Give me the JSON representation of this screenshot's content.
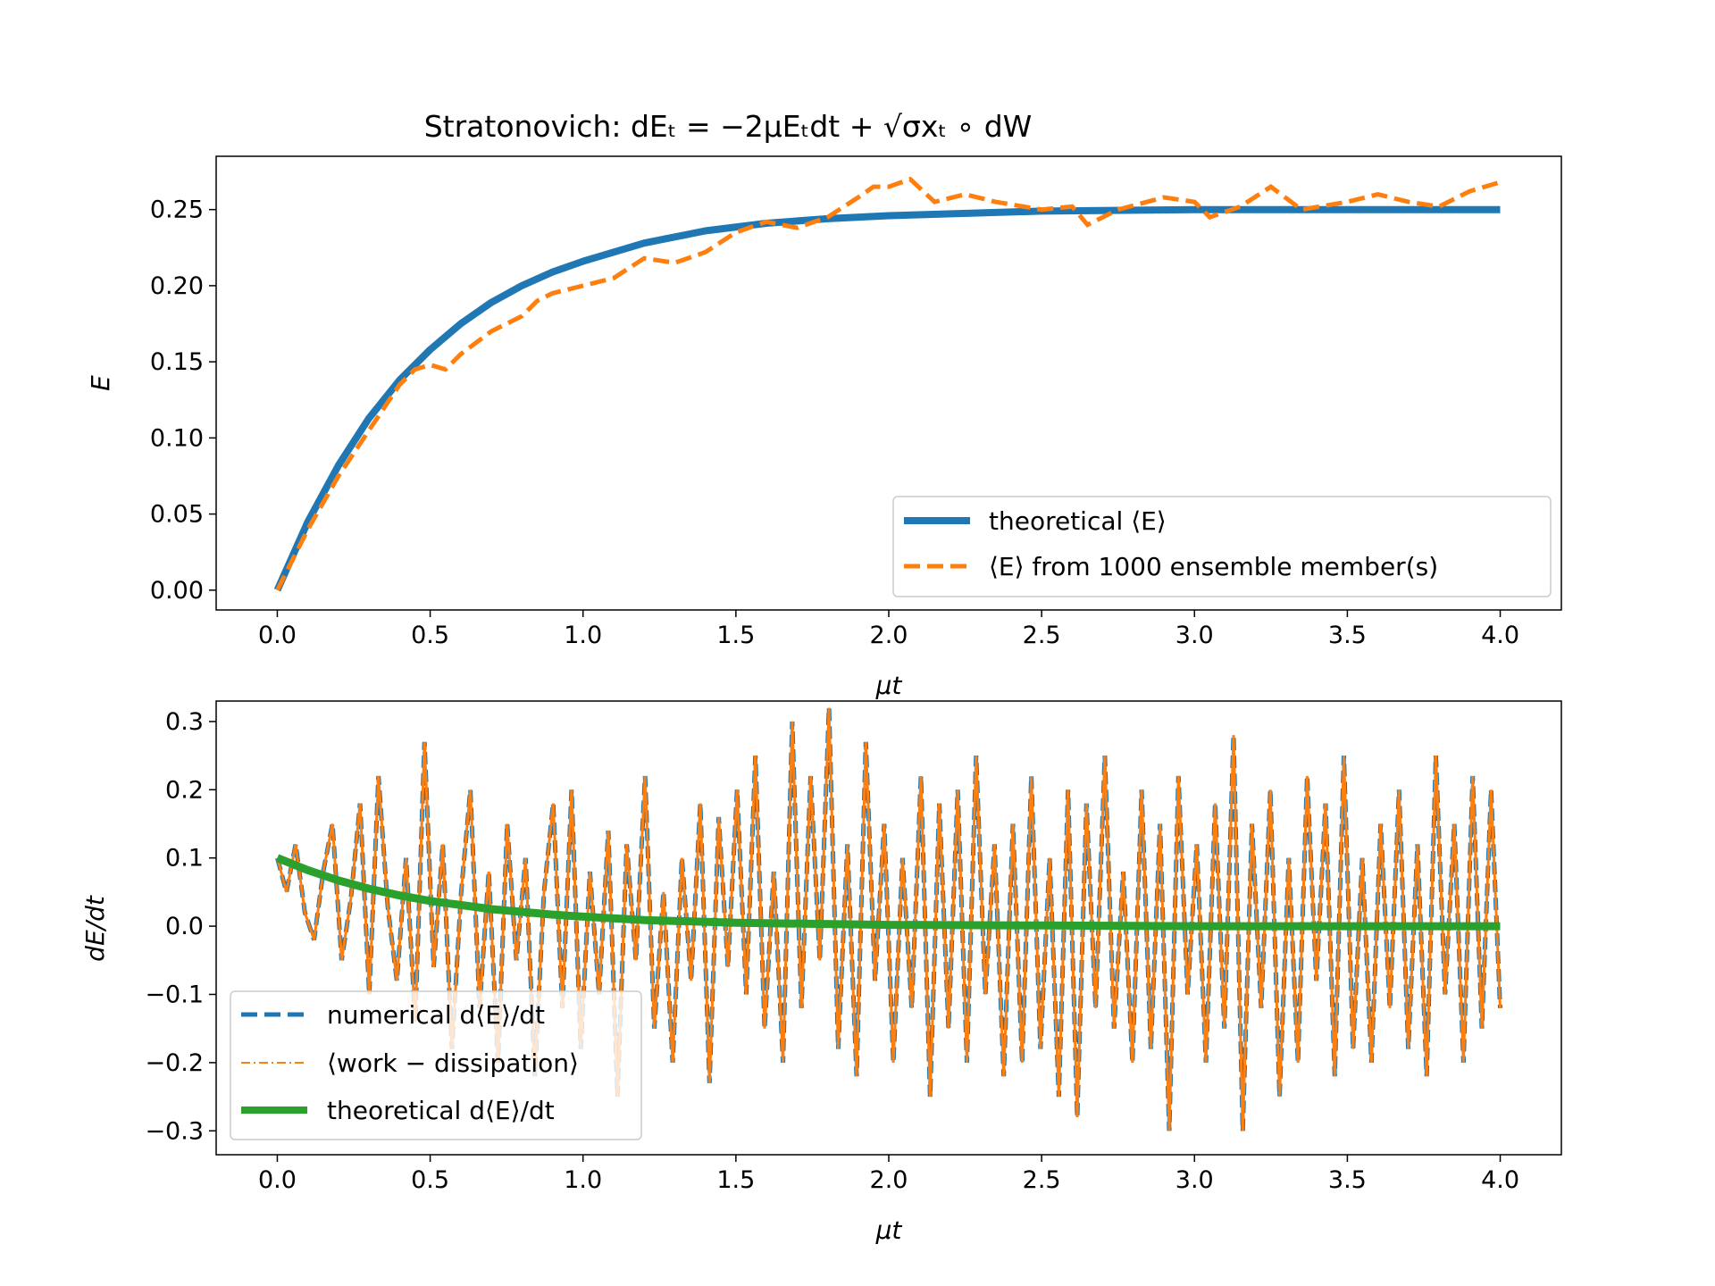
{
  "figure": {
    "title": "Stratonovich: dEₜ = −2μEₜdt + √σxₜ ∘ dW"
  },
  "chart_data": [
    {
      "type": "line",
      "title": "Stratonovich: dEₜ = −2μEₜdt + √σxₜ ∘ dW",
      "xlabel": "μt",
      "ylabel": "E",
      "xlim": [
        -0.2,
        4.2
      ],
      "ylim": [
        -0.013,
        0.285
      ],
      "xticks": [
        0.0,
        0.5,
        1.0,
        1.5,
        2.0,
        2.5,
        3.0,
        3.5,
        4.0
      ],
      "xtick_labels": [
        "0.0",
        "0.5",
        "1.0",
        "1.5",
        "2.0",
        "2.5",
        "3.0",
        "3.5",
        "4.0"
      ],
      "yticks": [
        0.0,
        0.05,
        0.1,
        0.15,
        0.2,
        0.25
      ],
      "ytick_labels": [
        "0.00",
        "0.05",
        "0.10",
        "0.15",
        "0.20",
        "0.25"
      ],
      "grid": false,
      "legend_position": "lower-right",
      "series": [
        {
          "name": "theoretical ⟨E⟩",
          "color": "#1f77b4",
          "style": "solid",
          "x": [
            0.0,
            0.1,
            0.2,
            0.3,
            0.4,
            0.5,
            0.6,
            0.7,
            0.8,
            0.9,
            1.0,
            1.2,
            1.4,
            1.6,
            1.8,
            2.0,
            2.5,
            3.0,
            3.5,
            4.0
          ],
          "y": [
            0.0,
            0.045,
            0.082,
            0.113,
            0.138,
            0.158,
            0.175,
            0.189,
            0.2,
            0.209,
            0.216,
            0.228,
            0.236,
            0.241,
            0.244,
            0.246,
            0.249,
            0.25,
            0.25,
            0.25
          ]
        },
        {
          "name": "⟨E⟩ from 1000 ensemble member(s)",
          "color": "#ff7f0e",
          "style": "dashed",
          "x": [
            0.0,
            0.1,
            0.2,
            0.3,
            0.4,
            0.45,
            0.5,
            0.55,
            0.6,
            0.7,
            0.8,
            0.85,
            0.9,
            1.0,
            1.1,
            1.2,
            1.3,
            1.4,
            1.5,
            1.6,
            1.7,
            1.8,
            1.9,
            1.95,
            2.0,
            2.07,
            2.15,
            2.25,
            2.35,
            2.5,
            2.6,
            2.65,
            2.75,
            2.9,
            3.0,
            3.05,
            3.15,
            3.25,
            3.35,
            3.5,
            3.6,
            3.7,
            3.8,
            3.9,
            4.0
          ],
          "y": [
            0.0,
            0.04,
            0.075,
            0.105,
            0.135,
            0.145,
            0.148,
            0.145,
            0.155,
            0.17,
            0.18,
            0.19,
            0.195,
            0.2,
            0.205,
            0.218,
            0.215,
            0.222,
            0.235,
            0.242,
            0.238,
            0.245,
            0.258,
            0.265,
            0.265,
            0.27,
            0.255,
            0.26,
            0.255,
            0.25,
            0.252,
            0.24,
            0.25,
            0.258,
            0.255,
            0.245,
            0.252,
            0.265,
            0.25,
            0.255,
            0.26,
            0.255,
            0.252,
            0.262,
            0.268
          ]
        }
      ]
    },
    {
      "type": "line",
      "xlabel": "μt",
      "ylabel": "dE/dt",
      "xlim": [
        -0.2,
        4.2
      ],
      "ylim": [
        -0.335,
        0.33
      ],
      "xticks": [
        0.0,
        0.5,
        1.0,
        1.5,
        2.0,
        2.5,
        3.0,
        3.5,
        4.0
      ],
      "xtick_labels": [
        "0.0",
        "0.5",
        "1.0",
        "1.5",
        "2.0",
        "2.5",
        "3.0",
        "3.5",
        "4.0"
      ],
      "yticks": [
        -0.3,
        -0.2,
        -0.1,
        0.0,
        0.1,
        0.2,
        0.3
      ],
      "ytick_labels": [
        "−0.3",
        "−0.2",
        "−0.1",
        "0.0",
        "0.1",
        "0.2",
        "0.3"
      ],
      "grid": false,
      "legend_position": "lower-left",
      "series": [
        {
          "name": "numerical d⟨E⟩/dt",
          "color": "#1f77b4",
          "style": "dashed",
          "note_shape": "dense noise between about −0.3 and 0.32 over μt 0–4"
        },
        {
          "name": "⟨work − dissipation⟩",
          "color": "#ff7f0e",
          "style": "dashdot"
        },
        {
          "name": "theoretical d⟨E⟩/dt",
          "color": "#2ca02c",
          "style": "solid",
          "x": [
            0.0,
            0.1,
            0.2,
            0.3,
            0.4,
            0.5,
            0.7,
            0.9,
            1.0,
            1.2,
            1.5,
            2.0,
            2.5,
            3.0,
            3.5,
            4.0
          ],
          "y": [
            0.1,
            0.082,
            0.067,
            0.055,
            0.045,
            0.037,
            0.025,
            0.017,
            0.014,
            0.009,
            0.005,
            0.002,
            0.001,
            0.0,
            0.0,
            0.0
          ]
        }
      ],
      "noise_samples": [
        0.1,
        0.05,
        0.12,
        0.02,
        -0.02,
        0.08,
        0.15,
        -0.05,
        0.04,
        0.18,
        -0.1,
        0.22,
        0.03,
        -0.08,
        0.1,
        -0.14,
        0.27,
        -0.06,
        0.12,
        -0.18,
        0.05,
        0.2,
        -0.12,
        0.08,
        -0.2,
        0.15,
        -0.05,
        0.1,
        -0.22,
        0.05,
        0.18,
        -0.12,
        0.2,
        -0.18,
        0.08,
        -0.1,
        0.14,
        -0.25,
        0.12,
        -0.05,
        0.22,
        -0.15,
        0.05,
        -0.2,
        0.1,
        -0.08,
        0.18,
        -0.23,
        0.16,
        -0.06,
        0.2,
        -0.1,
        0.25,
        -0.15,
        0.08,
        -0.2,
        0.3,
        -0.12,
        0.22,
        -0.05,
        0.32,
        -0.18,
        0.12,
        -0.22,
        0.27,
        -0.08,
        0.15,
        -0.2,
        0.1,
        -0.12,
        0.22,
        -0.25,
        0.18,
        -0.15,
        0.2,
        -0.2,
        0.25,
        -0.1,
        0.12,
        -0.22,
        0.15,
        -0.2,
        0.22,
        -0.18,
        0.1,
        -0.25,
        0.2,
        -0.28,
        0.18,
        -0.12,
        0.25,
        -0.15,
        0.08,
        -0.2,
        0.2,
        -0.18,
        0.15,
        -0.3,
        0.22,
        -0.1,
        0.12,
        -0.2,
        0.18,
        -0.15,
        0.28,
        -0.3,
        0.15,
        -0.12,
        0.2,
        -0.25,
        0.1,
        -0.2,
        0.22,
        -0.08,
        0.18,
        -0.22,
        0.25,
        -0.18,
        0.1,
        -0.2,
        0.15,
        -0.12,
        0.2,
        -0.18,
        0.12,
        -0.22,
        0.25,
        -0.1,
        0.15,
        -0.2,
        0.22,
        -0.15,
        0.2,
        -0.12
      ]
    }
  ]
}
